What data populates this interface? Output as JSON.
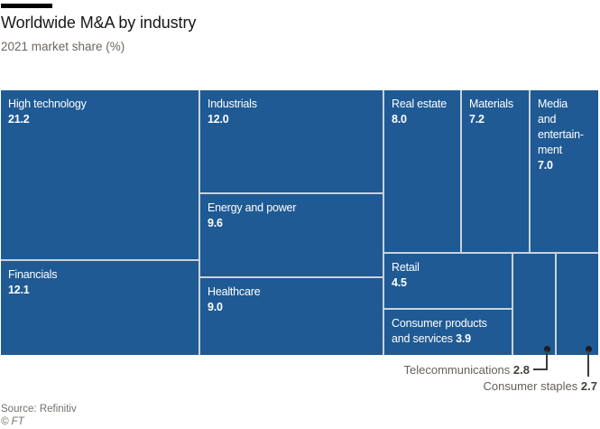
{
  "header": {
    "title": "Worldwide M&A by industry",
    "subtitle": "2021 market share (%)"
  },
  "footer": {
    "source": "Source: Refinitiv",
    "credit": "© FT"
  },
  "colors": {
    "cell_blue": "#1f5a94",
    "divider": "#c9d2dc",
    "accent_bar": "#000000",
    "cell_text": "#ffffff",
    "annotation_text": "#66605c"
  },
  "chart_data": {
    "type": "treemap",
    "title": "Worldwide M&A by industry",
    "subtitle": "2021 market share (%)",
    "unit": "%",
    "cells": [
      {
        "label": "High technology",
        "value": 21.2,
        "value_label": "21.2"
      },
      {
        "label": "Financials",
        "value": 12.1,
        "value_label": "12.1"
      },
      {
        "label": "Industrials",
        "value": 12.0,
        "value_label": "12.0"
      },
      {
        "label": "Energy and power",
        "value": 9.6,
        "value_label": "9.6"
      },
      {
        "label": "Healthcare",
        "value": 9.0,
        "value_label": "9.0"
      },
      {
        "label": "Real estate",
        "value": 8.0,
        "value_label": "8.0"
      },
      {
        "label": "Materials",
        "value": 7.2,
        "value_label": "7.2"
      },
      {
        "label": "Media and entertainment",
        "value": 7.0,
        "value_label": "7.0",
        "label_display": "Media\nand\nentertain-\nment"
      },
      {
        "label": "Retail",
        "value": 4.5,
        "value_label": "4.5"
      },
      {
        "label": "Consumer products and services",
        "value": 3.9,
        "value_label": "3.9"
      },
      {
        "label": "Telecommunications",
        "value": 2.8,
        "value_label": "2.8",
        "label_style": "callout"
      },
      {
        "label": "Consumer staples",
        "value": 2.7,
        "value_label": "2.7",
        "label_style": "callout"
      }
    ]
  }
}
